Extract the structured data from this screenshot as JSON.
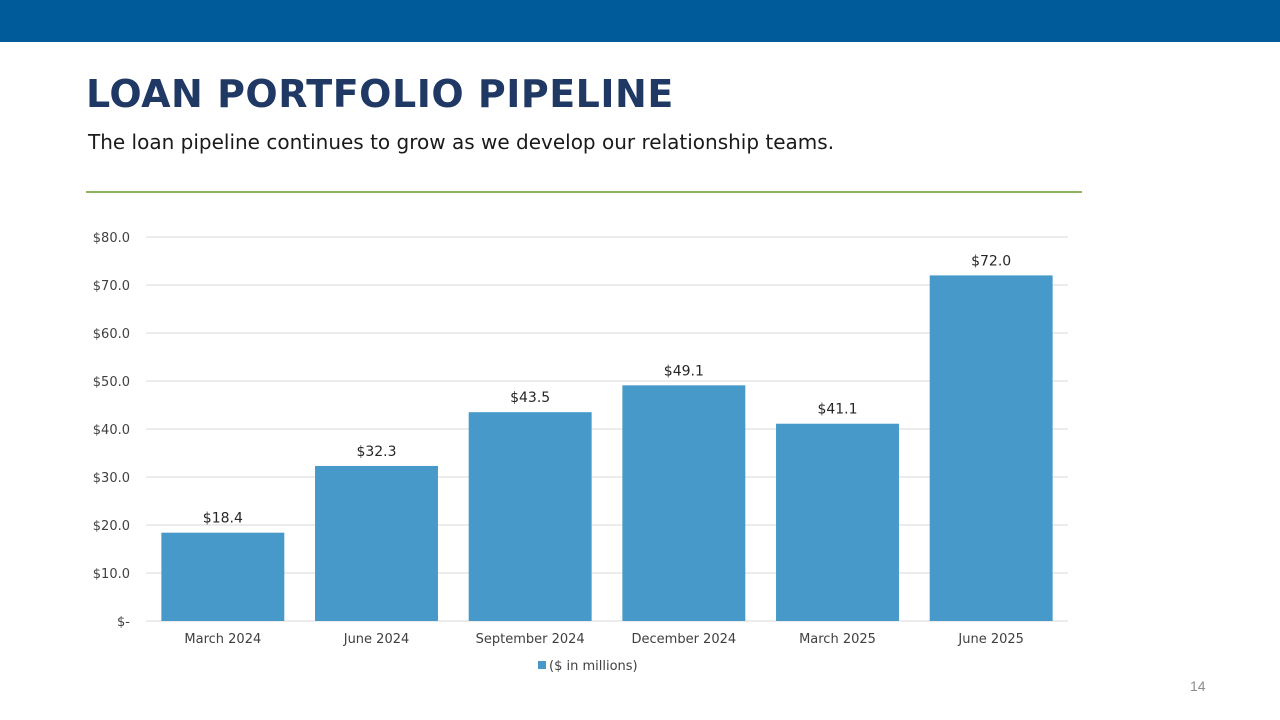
{
  "slide": {
    "title": "LOAN PORTFOLIO PIPELINE",
    "subtitle": "The loan pipeline continues to grow as we develop our relationship teams.",
    "page_number": "14"
  },
  "colors": {
    "top_bar": "#005b9a",
    "title": "#1f3864",
    "divider": "#8cb55b",
    "bar": "#4699c9",
    "gridline": "#d9d9d9",
    "axis_text": "#404040"
  },
  "chart_data": {
    "type": "bar",
    "title": "",
    "xlabel": "",
    "ylabel": "",
    "categories": [
      "March 2024",
      "June 2024",
      "September 2024",
      "December 2024",
      "March 2025",
      "June 2025"
    ],
    "series": [
      {
        "name": "($ in millions)",
        "values": [
          18.4,
          32.3,
          43.5,
          49.1,
          41.1,
          72.0
        ],
        "data_labels": [
          "$18.4",
          "$32.3",
          "$43.5",
          "$49.1",
          "$41.1",
          "$72.0"
        ]
      }
    ],
    "y_ticks": [
      0,
      10,
      20,
      30,
      40,
      50,
      60,
      70,
      80
    ],
    "y_tick_labels": [
      "$-",
      "$10.0",
      "$20.0",
      "$30.0",
      "$40.0",
      "$50.0",
      "$60.0",
      "$70.0",
      "$80.0"
    ],
    "ylim": [
      0,
      80
    ],
    "grid": true,
    "legend_position": "bottom"
  }
}
